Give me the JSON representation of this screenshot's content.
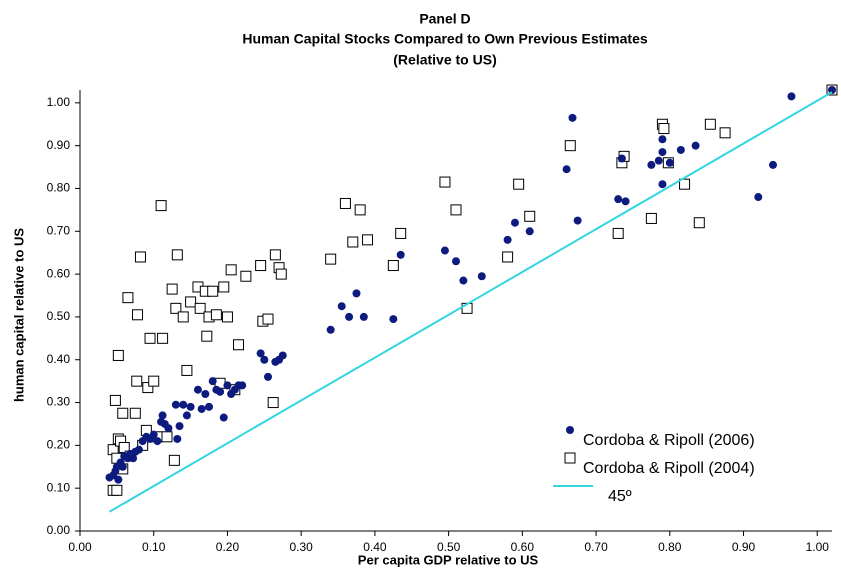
{
  "chart_data": {
    "type": "scatter",
    "title_lines": [
      "Panel D",
      "Human Capital Stocks Compared to Own Previous Estimates",
      "(Relative to US)"
    ],
    "x_label": "Per capita GDP relative to US",
    "y_label": "human capital relative to US",
    "xlim": [
      0,
      1.02
    ],
    "ylim": [
      0,
      1.03
    ],
    "xticks": [
      {
        "value": 0,
        "label": "0.00"
      },
      {
        "value": 0.1,
        "label": "0.10"
      },
      {
        "value": 0.2,
        "label": "0.20"
      },
      {
        "value": 0.3,
        "label": "0.30"
      },
      {
        "value": 0.4,
        "label": "0.40"
      },
      {
        "value": 0.5,
        "label": "0.50"
      },
      {
        "value": 0.6,
        "label": "0.60"
      },
      {
        "value": 0.7,
        "label": "0.70"
      },
      {
        "value": 0.8,
        "label": "0.80"
      },
      {
        "value": 0.9,
        "label": "0.90"
      },
      {
        "value": 1,
        "label": "1.00"
      }
    ],
    "yticks": [
      {
        "value": 0,
        "label": "0.00"
      },
      {
        "value": 0.1,
        "label": "0.10"
      },
      {
        "value": 0.2,
        "label": "0.20"
      },
      {
        "value": 0.3,
        "label": "0.30"
      },
      {
        "value": 0.4,
        "label": "0.40"
      },
      {
        "value": 0.5,
        "label": "0.50"
      },
      {
        "value": 0.6,
        "label": "0.60"
      },
      {
        "value": 0.7,
        "label": "0.70"
      },
      {
        "value": 0.8,
        "label": "0.80"
      },
      {
        "value": 0.9,
        "label": "0.90"
      },
      {
        "value": 1,
        "label": "1.00"
      }
    ],
    "grid": false,
    "legend": "lower right",
    "series": [
      {
        "name": "Cordoba & Ripoll (2006)",
        "color": "#0d1b7e",
        "marker": "circle",
        "x": [
          0.04,
          0.045,
          0.048,
          0.05,
          0.052,
          0.055,
          0.058,
          0.06,
          0.065,
          0.068,
          0.072,
          0.075,
          0.08,
          0.085,
          0.09,
          0.095,
          0.1,
          0.105,
          0.11,
          0.112,
          0.115,
          0.12,
          0.13,
          0.132,
          0.135,
          0.14,
          0.145,
          0.15,
          0.16,
          0.165,
          0.17,
          0.175,
          0.18,
          0.185,
          0.19,
          0.195,
          0.2,
          0.205,
          0.21,
          0.215,
          0.22,
          0.245,
          0.25,
          0.255,
          0.265,
          0.27,
          0.275,
          0.34,
          0.355,
          0.365,
          0.375,
          0.385,
          0.425,
          0.435,
          0.495,
          0.51,
          0.52,
          0.545,
          0.58,
          0.59,
          0.61,
          0.66,
          0.668,
          0.675,
          0.73,
          0.735,
          0.74,
          0.775,
          0.785,
          0.79,
          0.79,
          0.79,
          0.8,
          0.815,
          0.835,
          0.92,
          0.94,
          0.965,
          1.02
        ],
        "values": [
          0.125,
          0.13,
          0.14,
          0.15,
          0.12,
          0.16,
          0.15,
          0.175,
          0.17,
          0.18,
          0.17,
          0.185,
          0.19,
          0.21,
          0.22,
          0.215,
          0.225,
          0.21,
          0.255,
          0.27,
          0.25,
          0.24,
          0.295,
          0.215,
          0.245,
          0.295,
          0.27,
          0.29,
          0.33,
          0.285,
          0.32,
          0.29,
          0.35,
          0.33,
          0.325,
          0.265,
          0.34,
          0.32,
          0.33,
          0.34,
          0.34,
          0.415,
          0.4,
          0.36,
          0.395,
          0.4,
          0.41,
          0.47,
          0.525,
          0.5,
          0.555,
          0.5,
          0.495,
          0.645,
          0.655,
          0.63,
          0.585,
          0.595,
          0.68,
          0.72,
          0.7,
          0.845,
          0.965,
          0.725,
          0.775,
          0.87,
          0.77,
          0.855,
          0.865,
          0.915,
          0.81,
          0.885,
          0.86,
          0.89,
          0.9,
          0.78,
          0.855,
          1.015,
          1.03
        ]
      },
      {
        "name": "Cordoba & Ripoll (2004)",
        "color": "#000000",
        "marker": "square",
        "x": [
          0.045,
          0.05,
          0.048,
          0.045,
          0.05,
          0.052,
          0.055,
          0.052,
          0.058,
          0.058,
          0.06,
          0.065,
          0.068,
          0.075,
          0.077,
          0.078,
          0.082,
          0.085,
          0.09,
          0.092,
          0.095,
          0.1,
          0.105,
          0.11,
          0.112,
          0.118,
          0.125,
          0.128,
          0.13,
          0.132,
          0.14,
          0.145,
          0.15,
          0.16,
          0.163,
          0.17,
          0.172,
          0.175,
          0.18,
          0.185,
          0.19,
          0.195,
          0.2,
          0.205,
          0.21,
          0.215,
          0.225,
          0.245,
          0.248,
          0.255,
          0.262,
          0.265,
          0.27,
          0.273,
          0.34,
          0.36,
          0.37,
          0.38,
          0.39,
          0.425,
          0.435,
          0.495,
          0.51,
          0.525,
          0.58,
          0.595,
          0.61,
          0.665,
          0.73,
          0.735,
          0.738,
          0.775,
          0.79,
          0.792,
          0.798,
          0.82,
          0.84,
          0.855,
          0.875,
          1.02
        ],
        "values": [
          0.095,
          0.095,
          0.305,
          0.19,
          0.17,
          0.215,
          0.21,
          0.41,
          0.145,
          0.275,
          0.195,
          0.545,
          0.175,
          0.275,
          0.35,
          0.505,
          0.64,
          0.2,
          0.235,
          0.335,
          0.45,
          0.35,
          0.22,
          0.76,
          0.45,
          0.22,
          0.565,
          0.165,
          0.52,
          0.645,
          0.5,
          0.375,
          0.535,
          0.57,
          0.52,
          0.56,
          0.455,
          0.5,
          0.56,
          0.505,
          0.345,
          0.57,
          0.5,
          0.61,
          0.33,
          0.435,
          0.595,
          0.62,
          0.49,
          0.495,
          0.3,
          0.645,
          0.615,
          0.6,
          0.635,
          0.765,
          0.675,
          0.75,
          0.68,
          0.62,
          0.695,
          0.815,
          0.75,
          0.52,
          0.64,
          0.81,
          0.735,
          0.9,
          0.695,
          0.86,
          0.875,
          0.73,
          0.95,
          0.94,
          0.86,
          0.81,
          0.72,
          0.95,
          0.93,
          1.03
        ]
      },
      {
        "name": "45º",
        "color": "#33d6e0",
        "marker": "line",
        "x": [
          0.04,
          1.02
        ],
        "values": [
          0.045,
          1.025
        ]
      }
    ]
  }
}
